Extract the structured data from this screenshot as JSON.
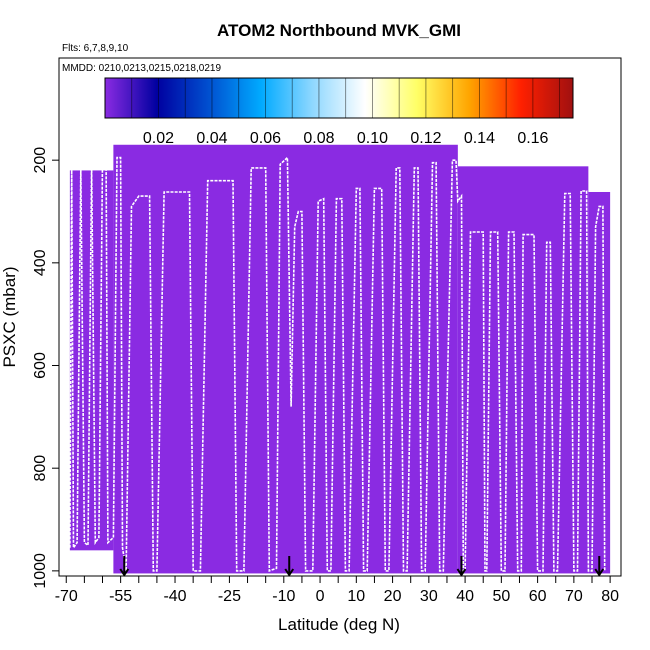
{
  "chart_data": {
    "type": "heatmap",
    "title": "ATOM2 Northbound MVK_GMI",
    "flights_note": "Flts: 6,7,8,9,10",
    "dates_note": "MMDD: 0210,0213,0215,0218,0219",
    "xlabel": "Latitude (deg N)",
    "ylabel": "PSXC (mbar)",
    "xlim": [
      -72,
      83
    ],
    "ylim": [
      1010,
      1
    ],
    "x_ticks": [
      -70,
      -55,
      -40,
      -25,
      -10,
      0,
      10,
      20,
      30,
      40,
      50,
      60,
      70,
      80
    ],
    "x_tick_labels": [
      "-70",
      "-55",
      "-40",
      "-25",
      "-10",
      "0",
      "10",
      "20",
      "30",
      "40",
      "50",
      "60",
      "70",
      "80"
    ],
    "x_minor_ticks": [
      -65,
      -60,
      -50,
      -45,
      -35,
      -30,
      -20,
      -15,
      -5,
      5,
      15,
      25,
      35,
      45,
      55,
      65,
      75
    ],
    "y_ticks": [
      200,
      400,
      600,
      800,
      1000
    ],
    "y_tick_labels": [
      "200",
      "400",
      "600",
      "800",
      "1000"
    ],
    "colorbar": {
      "ticks": [
        0.02,
        0.04,
        0.06,
        0.08,
        0.1,
        0.12,
        0.14,
        0.16
      ],
      "tick_labels": [
        "0.02",
        "0.04",
        "0.06",
        "0.08",
        "0.10",
        "0.12",
        "0.14",
        "0.16"
      ],
      "range": [
        0,
        0.175
      ],
      "colors": [
        "#8a2be2",
        "#0000a0",
        "#0050d0",
        "#00aaff",
        "#90d8ff",
        "#ffffff",
        "#ffff66",
        "#ffa500",
        "#ff2000",
        "#a01010"
      ]
    },
    "fill_color": "#8a2be2",
    "value_field": 0.0,
    "curtain_blocks": [
      {
        "x0": -69,
        "x1": -57,
        "p0": 220,
        "p1": 960
      },
      {
        "x0": -57,
        "x1": 38,
        "p0": 170,
        "p1": 1005
      },
      {
        "x0": 38,
        "x1": 74,
        "p0": 212,
        "p1": 1005
      },
      {
        "x0": 74,
        "x1": 80,
        "p0": 262,
        "p1": 1005
      }
    ],
    "flight_track": [
      [
        -69,
        955
      ],
      [
        -68.5,
        215
      ],
      [
        -68,
        955
      ],
      [
        -67,
        945
      ],
      [
        -66,
        215
      ],
      [
        -65,
        945
      ],
      [
        -64,
        950
      ],
      [
        -63,
        208
      ],
      [
        -62,
        945
      ],
      [
        -61,
        935
      ],
      [
        -60,
        198
      ],
      [
        -59,
        200
      ],
      [
        -58.5,
        945
      ],
      [
        -57,
        935
      ],
      [
        -56,
        195
      ],
      [
        -55,
        195
      ],
      [
        -54.5,
        955
      ],
      [
        -53.5,
        1000
      ],
      [
        -52,
        290
      ],
      [
        -50,
        270
      ],
      [
        -47,
        270
      ],
      [
        -46,
        1000
      ],
      [
        -45,
        1000
      ],
      [
        -43,
        262
      ],
      [
        -36,
        262
      ],
      [
        -35,
        1000
      ],
      [
        -33,
        1000
      ],
      [
        -31,
        240
      ],
      [
        -24,
        240
      ],
      [
        -23,
        1000
      ],
      [
        -21,
        1000
      ],
      [
        -19,
        215
      ],
      [
        -15,
        215
      ],
      [
        -14,
        1000
      ],
      [
        -12,
        995
      ],
      [
        -11,
        208
      ],
      [
        -9,
        195
      ],
      [
        -8,
        680
      ],
      [
        -7,
        330
      ],
      [
        -6,
        300
      ],
      [
        -5,
        300
      ],
      [
        -4,
        1000
      ],
      [
        -2,
        1000
      ],
      [
        -0.5,
        280
      ],
      [
        1,
        275
      ],
      [
        2,
        1000
      ],
      [
        3,
        1000
      ],
      [
        4.5,
        275
      ],
      [
        6,
        275
      ],
      [
        7,
        1000
      ],
      [
        8,
        1000
      ],
      [
        10,
        255
      ],
      [
        11,
        255
      ],
      [
        12,
        1000
      ],
      [
        13,
        1000
      ],
      [
        15,
        255
      ],
      [
        17,
        255
      ],
      [
        18,
        1000
      ],
      [
        19,
        1000
      ],
      [
        21,
        215
      ],
      [
        22,
        215
      ],
      [
        23,
        1000
      ],
      [
        24,
        1000
      ],
      [
        26,
        215
      ],
      [
        27,
        215
      ],
      [
        28,
        1000
      ],
      [
        29,
        1000
      ],
      [
        31,
        205
      ],
      [
        32,
        205
      ],
      [
        33,
        1000
      ],
      [
        34,
        1000
      ],
      [
        36.5,
        200
      ],
      [
        37.5,
        200
      ],
      [
        38,
        280
      ],
      [
        39,
        270
      ],
      [
        39.5,
        1000
      ],
      [
        40,
        1000
      ],
      [
        41.5,
        340
      ],
      [
        45,
        340
      ],
      [
        45.5,
        1000
      ],
      [
        46,
        1000
      ],
      [
        47,
        340
      ],
      [
        49,
        340
      ],
      [
        50,
        1000
      ],
      [
        51,
        1000
      ],
      [
        52,
        340
      ],
      [
        53.5,
        340
      ],
      [
        54.5,
        1000
      ],
      [
        55.5,
        1000
      ],
      [
        56,
        345
      ],
      [
        59,
        345
      ],
      [
        60,
        1000
      ],
      [
        61.5,
        1000
      ],
      [
        62.5,
        360
      ],
      [
        63.5,
        360
      ],
      [
        64.5,
        1000
      ],
      [
        65.5,
        1000
      ],
      [
        67.5,
        265
      ],
      [
        69,
        265
      ],
      [
        70,
        1000
      ],
      [
        71,
        1000
      ],
      [
        72,
        260
      ],
      [
        73.5,
        260
      ],
      [
        74,
        1000
      ],
      [
        75,
        1000
      ],
      [
        76,
        330
      ],
      [
        77,
        290
      ],
      [
        78,
        290
      ],
      [
        78.5,
        1000
      ]
    ],
    "arrow_latitudes": [
      -54,
      -8.5,
      39,
      77
    ]
  }
}
